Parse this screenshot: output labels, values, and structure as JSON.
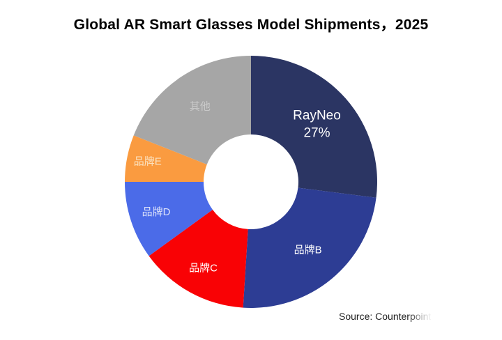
{
  "page": {
    "background": "#FFFFFF"
  },
  "chart_data": {
    "type": "pie",
    "subtype": "donut",
    "title": "Global AR Smart Glasses Model Shipments，2025",
    "source": "Source: Counterpoint",
    "start_angle_deg": 0,
    "direction": "clockwise",
    "legend": "none",
    "total_pct": 100,
    "segments": [
      {
        "label": "RayNeo",
        "pct": 27,
        "pct_label": "27%",
        "color": "#2B3563",
        "label_color": "#FFFFFF"
      },
      {
        "label": "品牌B",
        "pct": 24,
        "color": "#2D3D94",
        "label_color": "#FFFFFF"
      },
      {
        "label": "品牌C",
        "pct": 14,
        "color": "#F90205",
        "label_color": "#FFFFFF"
      },
      {
        "label": "品牌D",
        "pct": 10,
        "color": "#4B6BE8",
        "label_color": "#DCE2FA"
      },
      {
        "label": "品牌E",
        "pct": 6,
        "color": "#FA9B40",
        "label_color": "#FBE3C2"
      },
      {
        "label": "其他",
        "pct": 19,
        "color": "#A6A6A6",
        "label_color": "#C9C9C9"
      }
    ]
  }
}
